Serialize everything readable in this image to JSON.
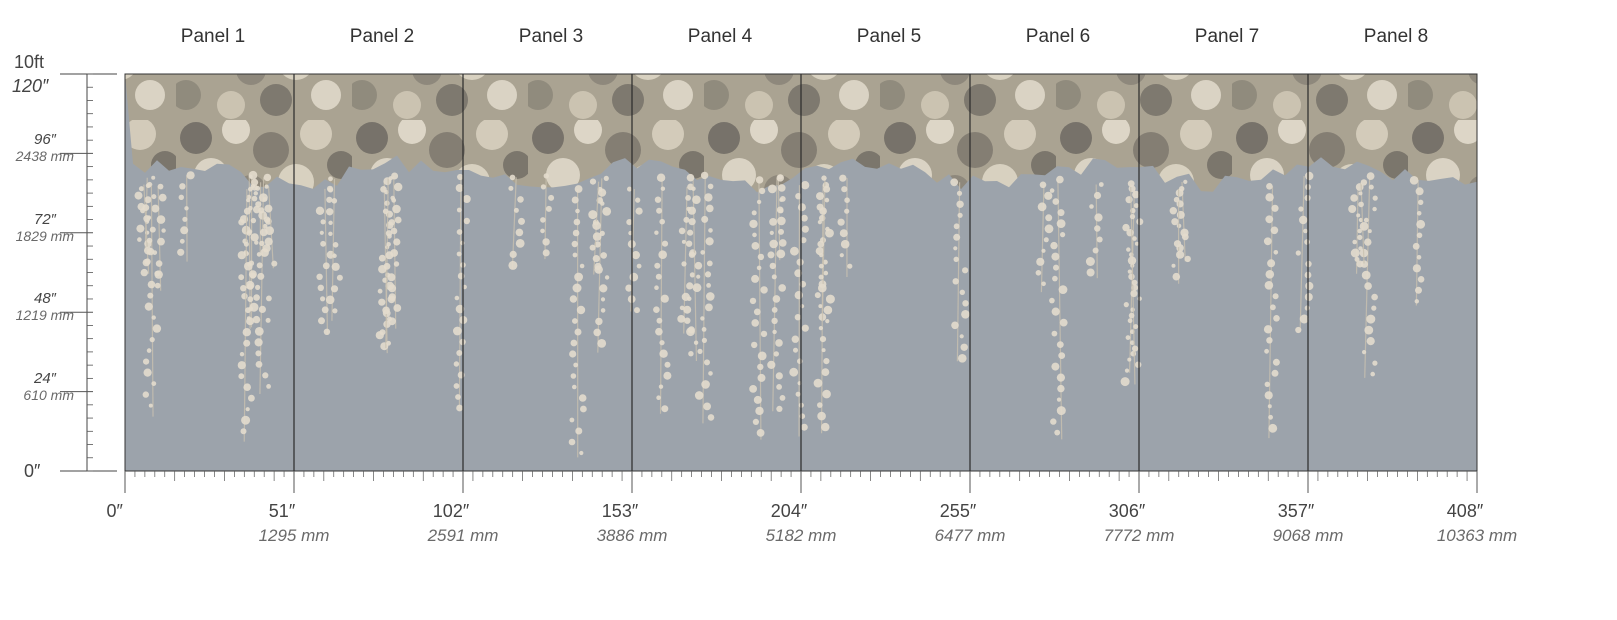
{
  "panels": [
    {
      "label": "Panel 1"
    },
    {
      "label": "Panel 2"
    },
    {
      "label": "Panel 3"
    },
    {
      "label": "Panel 4"
    },
    {
      "label": "Panel 5"
    },
    {
      "label": "Panel 6"
    },
    {
      "label": "Panel 7"
    },
    {
      "label": "Panel 8"
    }
  ],
  "height_scale": {
    "top_unit": "10ft",
    "top_inches": "120″",
    "bottom": "0″",
    "marks": [
      {
        "inches": "96″",
        "mm": "2438 mm"
      },
      {
        "inches": "72″",
        "mm": "1829 mm"
      },
      {
        "inches": "48″",
        "mm": "1219 mm"
      },
      {
        "inches": "24″",
        "mm": "610 mm"
      }
    ]
  },
  "width_scale": {
    "marks": [
      {
        "inches": "0″",
        "mm": ""
      },
      {
        "inches": "51″",
        "mm": "1295 mm"
      },
      {
        "inches": "102″",
        "mm": "2591 mm"
      },
      {
        "inches": "153″",
        "mm": "3886 mm"
      },
      {
        "inches": "204″",
        "mm": "5182 mm"
      },
      {
        "inches": "255″",
        "mm": "6477 mm"
      },
      {
        "inches": "306″",
        "mm": "7772 mm"
      },
      {
        "inches": "357″",
        "mm": "9068 mm"
      },
      {
        "inches": "408″",
        "mm": "10363 mm"
      }
    ]
  },
  "colors": {
    "wall": "#9ca3ab",
    "foliage_dark": "#6f6a63",
    "foliage_mid": "#a39c8c",
    "foliage_light": "#e3dccd",
    "panel_divider": "#2a2a2a"
  }
}
